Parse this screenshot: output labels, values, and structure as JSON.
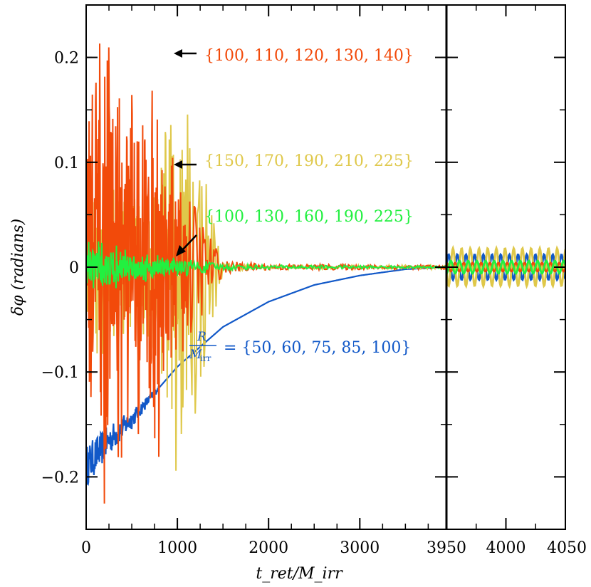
{
  "chart_data": {
    "type": "line",
    "title": "",
    "xlabel": "t_ret/M_irr",
    "ylabel": "δφ (radians)",
    "ylim": [
      -0.25,
      0.25
    ],
    "grid": false,
    "panels": [
      {
        "name": "left",
        "xlim": [
          0,
          3950
        ],
        "xticks": [
          0,
          1000,
          2000,
          3000
        ],
        "xtick_labels": [
          "0",
          "1000",
          "2000",
          "3000"
        ]
      },
      {
        "name": "right",
        "xlim": [
          3950,
          4050
        ],
        "xticks": [
          3950,
          4000,
          4050
        ],
        "xtick_labels": [
          "3950",
          "4000",
          "4050"
        ]
      }
    ],
    "yticks": [
      -0.2,
      -0.1,
      0,
      0.1,
      0.2
    ],
    "ytick_labels": [
      "−0.2",
      "−0.1",
      "0",
      "0.1",
      "0.2"
    ],
    "series": [
      {
        "name": "{100, 110, 120, 130, 140}",
        "color": "#f24a0a",
        "left_envelope": {
          "x": [
            0,
            200,
            400,
            600,
            800,
            1000,
            1500,
            2000,
            3950
          ],
          "amp": [
            0.25,
            0.24,
            0.2,
            0.18,
            0.2,
            0.1,
            0.006,
            0.003,
            0.002
          ]
        },
        "right_amplitude": 0.004
      },
      {
        "name": "{150, 170, 190, 210, 225}",
        "color": "#dfc84a",
        "left_envelope": {
          "x": [
            0,
            200,
            400,
            600,
            800,
            1000,
            1500,
            2000,
            3950
          ],
          "amp": [
            0.1,
            0.09,
            0.08,
            0.08,
            0.1,
            0.25,
            0.004,
            0.002,
            0.002
          ]
        },
        "right_amplitude": 0.018
      },
      {
        "name": "{100, 130, 160, 190, 225}",
        "color": "#22f040",
        "left_envelope": {
          "x": [
            0,
            200,
            400,
            600,
            800,
            1000,
            1500,
            2000,
            3950
          ],
          "amp": [
            0.03,
            0.025,
            0.02,
            0.015,
            0.015,
            0.01,
            0.003,
            0.002,
            0.001
          ]
        },
        "right_amplitude": 0.006
      },
      {
        "name": "R/M_irr = {50, 60, 75, 85, 100}",
        "color": "#1158c8",
        "left_trend": {
          "x": [
            0,
            250,
            500,
            800,
            1000,
            1500,
            2000,
            2500,
            3000,
            3500,
            3950
          ],
          "y": [
            -0.19,
            -0.165,
            -0.145,
            -0.115,
            -0.095,
            -0.057,
            -0.033,
            -0.017,
            -0.008,
            -0.002,
            0.0
          ]
        },
        "right_amplitude": 0.012
      }
    ],
    "annotations": [
      {
        "text": "{100, 110, 120, 130, 140}",
        "color": "#f24a0a",
        "arrow_to": [
          920,
          0.2
        ]
      },
      {
        "text": "{150, 170, 190, 210, 225}",
        "color": "#dfc84a",
        "arrow_to": [
          920,
          0.095
        ]
      },
      {
        "text": "{100, 130, 160, 190, 225}",
        "color": "#22f040",
        "arrow_to": [
          940,
          0.01
        ]
      },
      {
        "text_prefix": "R",
        "text_prefix_den": "M",
        "text_prefix_den_sub": "irr",
        "text": "= {50, 60, 75, 85, 100}",
        "color": "#1158c8"
      }
    ]
  }
}
